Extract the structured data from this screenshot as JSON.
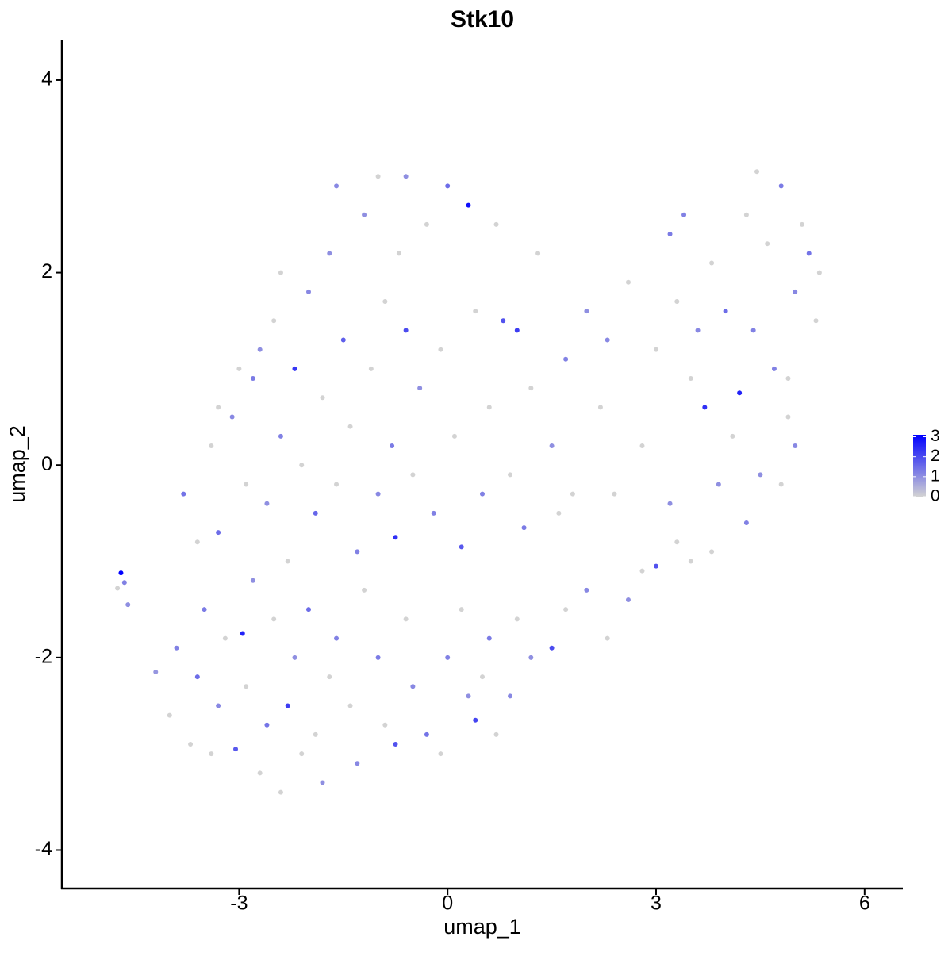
{
  "chart_data": {
    "type": "scatter",
    "title": "Stk10",
    "x_label": "umap_1",
    "y_label": "umap_2",
    "xlim": [
      -5.55,
      6.55
    ],
    "ylim": [
      -4.4,
      4.42
    ],
    "xticks": [
      -3,
      0,
      3,
      6
    ],
    "yticks": [
      -4,
      -2,
      0,
      2,
      4
    ],
    "x": [
      -4.7,
      -4.65,
      -4.6,
      -4.75,
      -4.2,
      -4.0,
      -3.9,
      -3.7,
      -3.6,
      -3.5,
      -3.4,
      -3.3,
      -3.2,
      -3.05,
      -2.95,
      -2.9,
      -2.8,
      -2.7,
      -2.6,
      -2.5,
      -2.4,
      -2.3,
      -2.2,
      -2.1,
      -2.0,
      -1.9,
      -1.8,
      -1.7,
      -1.6,
      -1.4,
      -1.3,
      -1.2,
      -1.0,
      -0.9,
      -0.75,
      -0.6,
      -0.5,
      -0.3,
      -0.1,
      0.0,
      0.2,
      0.3,
      0.4,
      0.5,
      0.6,
      0.7,
      0.9,
      1.0,
      1.2,
      1.5,
      1.7,
      2.0,
      2.3,
      2.6,
      2.8,
      3.0,
      3.3,
      3.5,
      -3.8,
      -3.6,
      -3.4,
      -3.3,
      -3.1,
      -2.9,
      -2.8,
      -2.6,
      -2.5,
      -2.4,
      -2.3,
      -2.2,
      -2.1,
      -2.0,
      -1.9,
      -1.8,
      -1.7,
      -1.6,
      -1.5,
      -1.4,
      -1.3,
      -1.2,
      -1.1,
      -1.0,
      -0.9,
      -0.8,
      -0.75,
      -0.7,
      -0.6,
      -0.5,
      -0.4,
      -0.3,
      -0.2,
      -0.1,
      0.0,
      0.1,
      0.2,
      0.3,
      0.4,
      0.5,
      0.6,
      0.7,
      0.8,
      0.9,
      1.0,
      1.1,
      1.2,
      1.3,
      1.5,
      1.6,
      1.7,
      1.8,
      2.0,
      2.2,
      2.3,
      2.4,
      2.6,
      2.8,
      3.0,
      -1.0,
      -0.6,
      -1.6,
      -2.4,
      -2.7,
      -3.0,
      -3.3,
      3.2,
      3.4,
      3.3,
      3.5,
      3.6,
      3.7,
      3.8,
      3.9,
      4.0,
      4.1,
      4.2,
      4.3,
      4.4,
      4.45,
      4.5,
      4.6,
      4.7,
      4.8,
      4.9,
      5.0,
      5.1,
      5.2,
      5.3,
      5.35,
      4.8,
      4.3,
      3.8,
      3.2,
      4.9,
      5.0
    ],
    "values": [
      -1.12,
      -1.22,
      -1.45,
      -1.28,
      -2.15,
      -2.6,
      -1.9,
      -2.9,
      -2.2,
      -1.5,
      -3.0,
      -2.5,
      -1.8,
      -2.95,
      -1.75,
      -2.3,
      -1.2,
      -3.2,
      -2.7,
      -1.6,
      -3.4,
      -2.5,
      -2.0,
      -3.0,
      -1.5,
      -2.8,
      -3.3,
      -2.2,
      -1.8,
      -2.5,
      -3.1,
      -1.3,
      -2.0,
      -2.7,
      -2.9,
      -1.6,
      -2.3,
      -2.8,
      -3.0,
      -2.0,
      -1.5,
      -2.4,
      -2.65,
      -2.2,
      -1.8,
      -2.8,
      -2.4,
      -1.6,
      -2.0,
      -1.9,
      -1.5,
      -1.3,
      -1.8,
      -1.4,
      -1.1,
      -1.05,
      -0.8,
      -1.0,
      -0.3,
      -0.8,
      0.2,
      -0.7,
      0.5,
      -0.2,
      0.9,
      -0.4,
      1.5,
      0.3,
      -1.0,
      1.0,
      0.0,
      1.8,
      -0.5,
      0.7,
      2.2,
      -0.2,
      1.3,
      0.4,
      -0.9,
      2.6,
      1.0,
      -0.3,
      1.7,
      0.2,
      -0.75,
      2.2,
      1.4,
      -0.1,
      0.8,
      2.5,
      -0.5,
      1.2,
      2.9,
      0.3,
      -0.85,
      2.7,
      1.6,
      -0.3,
      0.6,
      2.5,
      1.5,
      -0.1,
      1.4,
      -0.65,
      0.8,
      2.2,
      0.2,
      -0.5,
      1.1,
      -0.3,
      1.6,
      0.6,
      1.3,
      -0.3,
      1.9,
      0.2,
      1.2,
      3.0,
      3.0,
      2.9,
      2.0,
      1.2,
      1.0,
      0.6,
      2.4,
      2.6,
      1.7,
      0.9,
      1.4,
      0.6,
      2.1,
      -0.2,
      1.6,
      0.3,
      0.75,
      2.6,
      1.4,
      3.05,
      -0.1,
      2.3,
      1.0,
      2.9,
      0.5,
      1.8,
      2.5,
      2.2,
      1.5,
      2.0,
      -0.2,
      -0.6,
      -0.9,
      -0.4,
      0.9,
      0.2
    ],
    "expression": [
      3.1,
      1.2,
      1.0,
      0,
      0.9,
      0,
      1.2,
      0,
      1.5,
      1.3,
      0,
      1.1,
      0,
      1.8,
      2.6,
      0,
      1.0,
      0,
      1.4,
      0,
      0,
      2.2,
      1.0,
      0,
      1.5,
      0,
      1.0,
      0,
      1.2,
      0,
      1.1,
      0,
      1.3,
      0,
      1.9,
      0,
      1.1,
      1.4,
      0,
      1.2,
      0,
      1.0,
      2.1,
      0,
      1.3,
      0,
      1.1,
      0,
      1.0,
      2.0,
      0,
      1.1,
      0,
      1.0,
      0,
      1.9,
      0,
      0,
      1.4,
      0,
      0,
      1.5,
      1.1,
      0,
      1.3,
      1.0,
      0,
      1.2,
      0,
      2.3,
      0,
      1.1,
      1.6,
      0,
      1.0,
      0,
      1.7,
      0,
      1.2,
      1.0,
      0,
      1.1,
      0,
      1.3,
      2.4,
      0,
      2.0,
      0,
      1.0,
      0,
      1.2,
      0,
      1.5,
      0,
      1.8,
      2.9,
      0,
      1.2,
      0,
      0,
      1.9,
      0,
      2.2,
      1.3,
      0,
      0,
      1.0,
      0,
      1.2,
      0,
      1.0,
      0,
      1.1,
      0,
      0,
      0,
      0,
      0,
      1.0,
      1.1,
      0,
      1.0,
      0,
      0,
      1.3,
      1.2,
      0,
      0,
      1.1,
      2.4,
      0,
      1.0,
      1.5,
      0,
      2.6,
      0,
      1.2,
      0,
      1.0,
      0,
      1.2,
      1.3,
      0,
      1.1,
      0,
      1.4,
      0,
      0,
      0,
      1.2,
      0,
      1.0,
      0,
      1.1
    ],
    "colorbar": {
      "low_color": "#d3d3d3",
      "high_color": "#0000ff",
      "lim": [
        0,
        3.1
      ],
      "ticks": [
        0,
        1,
        2,
        3
      ]
    }
  }
}
